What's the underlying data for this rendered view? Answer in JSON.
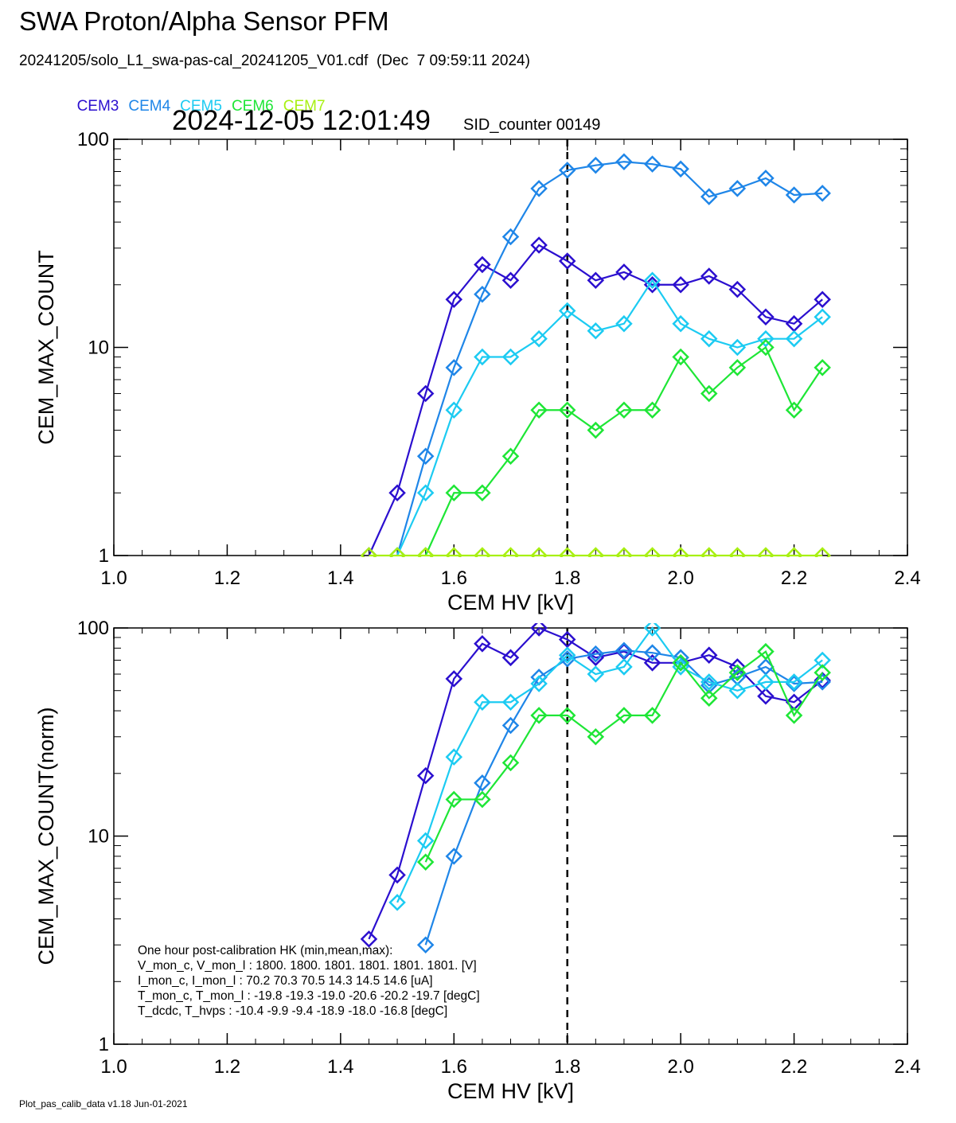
{
  "header": {
    "title": "SWA Proton/Alpha Sensor PFM",
    "subtitle": "20241205/solo_L1_swa-pas-cal_20241205_V01.cdf  (Dec  7 09:59:11 2024)",
    "timestamp": "2024-12-05 12:01:49",
    "sid_counter": "SID_counter 00149"
  },
  "legend": [
    {
      "label": "CEM3",
      "color": "#2b0fcf"
    },
    {
      "label": "CEM4",
      "color": "#1f86e8"
    },
    {
      "label": "CEM5",
      "color": "#1ccbf2"
    },
    {
      "label": "CEM6",
      "color": "#1ee636"
    },
    {
      "label": "CEM7",
      "color": "#a8f012"
    }
  ],
  "chart_data": [
    {
      "type": "line",
      "xlabel": "CEM HV [kV]",
      "ylabel": "CEM_MAX_COUNT",
      "xlim": [
        1.0,
        2.4
      ],
      "ylim": [
        1,
        100
      ],
      "yscale": "log",
      "xticks": [
        "1.0",
        "1.2",
        "1.4",
        "1.6",
        "1.8",
        "2.0",
        "2.2",
        "2.4"
      ],
      "yticks": [
        "1",
        "10",
        "100"
      ],
      "vline": 1.8,
      "series": [
        {
          "name": "CEM3",
          "color": "#2b0fcf",
          "x": [
            1.45,
            1.5,
            1.55,
            1.6,
            1.65,
            1.7,
            1.75,
            1.8,
            1.85,
            1.9,
            1.95,
            2.0,
            2.05,
            2.1,
            2.15,
            2.2,
            2.25
          ],
          "y": [
            1,
            2,
            6,
            17,
            25,
            21,
            31,
            26,
            21,
            23,
            20,
            20,
            22,
            19,
            14,
            13,
            17
          ]
        },
        {
          "name": "CEM4",
          "color": "#1f86e8",
          "x": [
            1.5,
            1.55,
            1.6,
            1.65,
            1.7,
            1.75,
            1.8,
            1.85,
            1.9,
            1.95,
            2.0,
            2.05,
            2.1,
            2.15,
            2.2,
            2.25
          ],
          "y": [
            1,
            3,
            8,
            18,
            34,
            58,
            71,
            75,
            78,
            76,
            72,
            53,
            58,
            65,
            54,
            55
          ]
        },
        {
          "name": "CEM5",
          "color": "#1ccbf2",
          "x": [
            1.5,
            1.55,
            1.6,
            1.65,
            1.7,
            1.75,
            1.8,
            1.85,
            1.9,
            1.95,
            2.0,
            2.05,
            2.1,
            2.15,
            2.2,
            2.25
          ],
          "y": [
            1,
            2,
            5,
            9,
            9,
            11,
            15,
            12,
            13,
            21,
            13,
            11,
            10,
            11,
            11,
            14
          ]
        },
        {
          "name": "CEM6",
          "color": "#1ee636",
          "x": [
            1.55,
            1.6,
            1.65,
            1.7,
            1.75,
            1.8,
            1.85,
            1.9,
            1.95,
            2.0,
            2.05,
            2.1,
            2.15,
            2.2,
            2.25
          ],
          "y": [
            1,
            2,
            2,
            3,
            5,
            5,
            4,
            5,
            5,
            9,
            6,
            8,
            10,
            5,
            8
          ]
        },
        {
          "name": "CEM7",
          "color": "#a8f012",
          "x": [
            1.45,
            1.5,
            1.55,
            1.6,
            1.65,
            1.7,
            1.75,
            1.8,
            1.85,
            1.9,
            1.95,
            2.0,
            2.05,
            2.1,
            2.15,
            2.2,
            2.25
          ],
          "y": [
            1,
            1,
            1,
            1,
            1,
            1,
            1,
            1,
            1,
            1,
            1,
            1,
            1,
            1,
            1,
            1,
            1
          ]
        }
      ]
    },
    {
      "type": "line",
      "xlabel": "CEM HV [kV]",
      "ylabel": "CEM_MAX_COUNT(norm)",
      "xlim": [
        1.0,
        2.4
      ],
      "ylim": [
        1,
        100
      ],
      "yscale": "log",
      "xticks": [
        "1.0",
        "1.2",
        "1.4",
        "1.6",
        "1.8",
        "2.0",
        "2.2",
        "2.4"
      ],
      "yticks": [
        "1",
        "10",
        "100"
      ],
      "vline": 1.8,
      "series": [
        {
          "name": "CEM3",
          "color": "#2b0fcf",
          "x": [
            1.45,
            1.5,
            1.55,
            1.6,
            1.65,
            1.7,
            1.75,
            1.8,
            1.85,
            1.9,
            1.95,
            2.0,
            2.05,
            2.1,
            2.15,
            2.2,
            2.25
          ],
          "y": [
            3.2,
            6.5,
            19.5,
            57,
            84,
            72,
            100,
            88,
            72,
            77,
            68,
            68,
            74,
            65,
            47,
            44,
            56
          ]
        },
        {
          "name": "CEM4",
          "color": "#1f86e8",
          "x": [
            1.55,
            1.6,
            1.65,
            1.7,
            1.75,
            1.8,
            1.85,
            1.9,
            1.95,
            2.0,
            2.05,
            2.1,
            2.15,
            2.2,
            2.25
          ],
          "y": [
            3,
            8,
            18,
            34,
            58,
            71,
            75,
            78,
            76,
            72,
            53,
            58,
            65,
            54,
            55
          ]
        },
        {
          "name": "CEM5",
          "color": "#1ccbf2",
          "x": [
            1.5,
            1.55,
            1.6,
            1.65,
            1.7,
            1.75,
            1.8,
            1.85,
            1.9,
            1.95,
            2.0,
            2.05,
            2.1,
            2.15,
            2.2,
            2.25
          ],
          "y": [
            4.8,
            9.5,
            24,
            44,
            44,
            54,
            74,
            60,
            65,
            100,
            65,
            55,
            50,
            55,
            55,
            70
          ]
        },
        {
          "name": "CEM6",
          "color": "#1ee636",
          "x": [
            1.55,
            1.6,
            1.65,
            1.7,
            1.75,
            1.8,
            1.85,
            1.9,
            1.95,
            2.0,
            2.05,
            2.1,
            2.15,
            2.2,
            2.25
          ],
          "y": [
            7.5,
            15,
            15,
            22.5,
            38,
            38,
            30,
            38,
            38,
            68,
            46,
            61,
            77,
            38,
            61
          ]
        }
      ]
    }
  ],
  "hk_block": {
    "lines": [
      "One hour post-calibration HK (min,mean,max):",
      "V_mon_c, V_mon_l :   1800.  1800.  1801.       1801.  1801.  1801. [V]",
      "I_mon_c,  I_mon_l :     70.2   70.3   70.5        14.3   14.5   14.6  [uA]",
      "T_mon_c, T_mon_l :   -19.8  -19.3  -19.0        -20.6  -20.2  -19.7  [degC]",
      "T_dcdc,    T_hvps :    -10.4   -9.9   -9.4        -18.9  -18.0  -16.8  [degC]"
    ]
  },
  "footer": "Plot_pas_calib_data v1.18 Jun-01-2021"
}
